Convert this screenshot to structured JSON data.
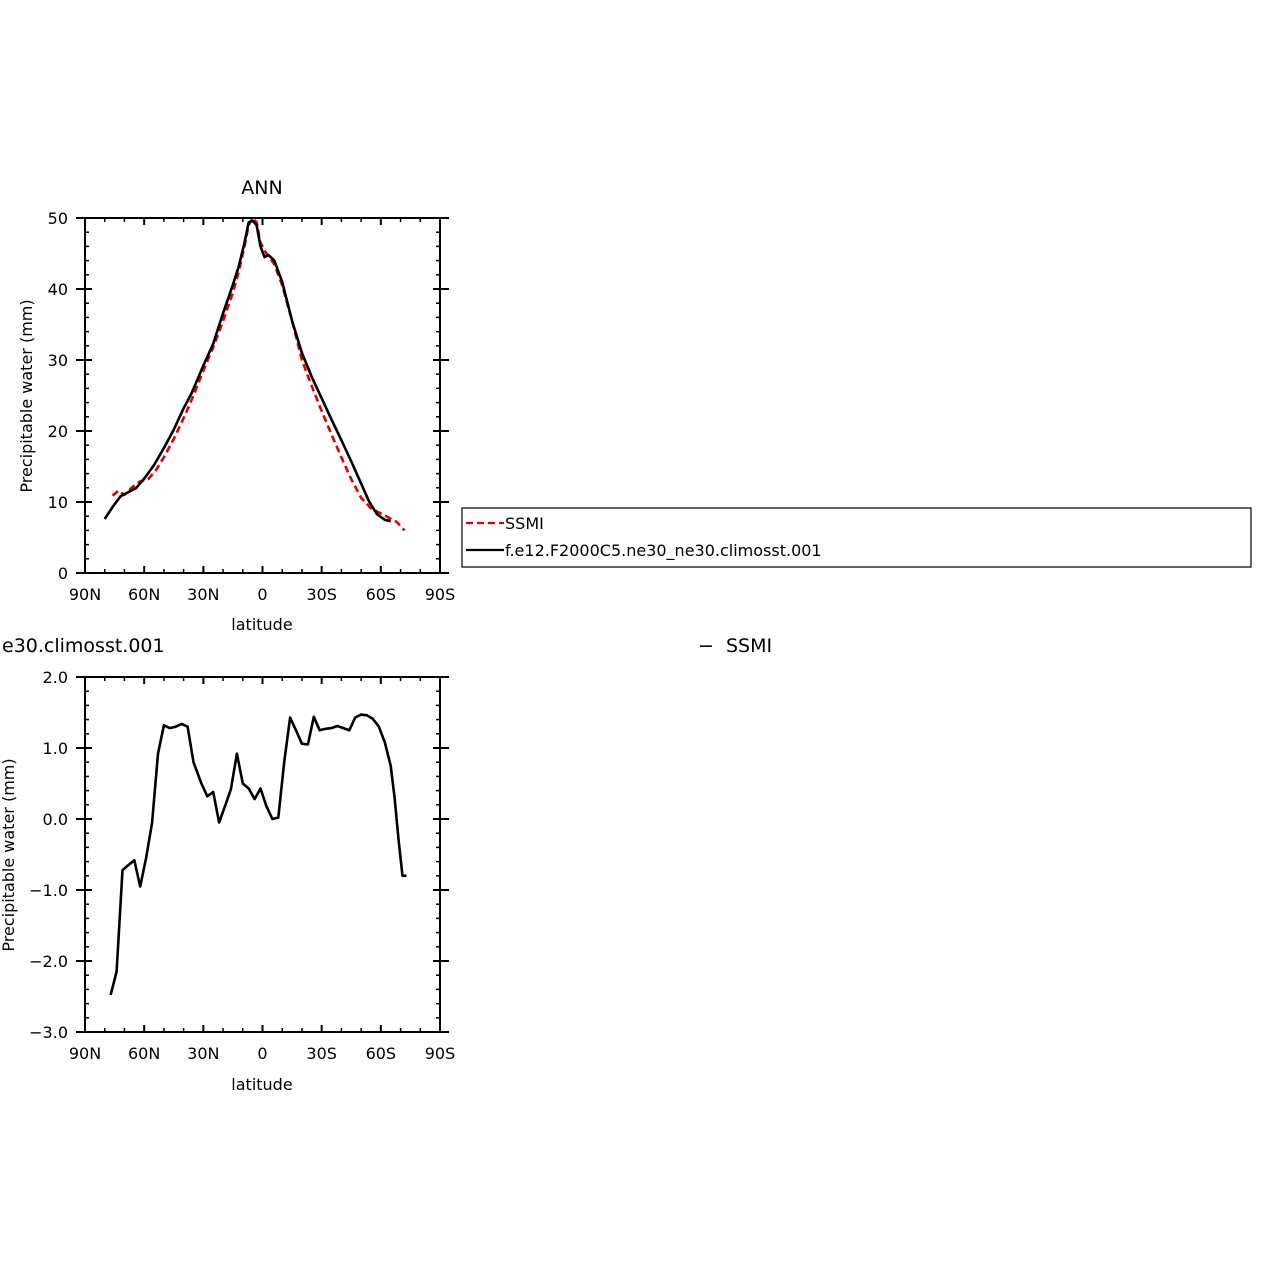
{
  "chart_data": [
    {
      "type": "line",
      "title": "ANN",
      "xlabel": "latitude",
      "ylabel": "Precipitable water  (mm)",
      "x_direction": "north-to-south",
      "xlim": [
        90,
        -90
      ],
      "ylim": [
        0,
        50
      ],
      "x_ticks": [
        90,
        60,
        30,
        0,
        -30,
        -60,
        -90
      ],
      "x_tick_labels": [
        "90N",
        "60N",
        "30N",
        "0",
        "30S",
        "60S",
        "90S"
      ],
      "y_ticks": [
        0,
        10,
        20,
        30,
        40,
        50
      ],
      "y_tick_labels": [
        "0",
        "10",
        "20",
        "30",
        "40",
        "50"
      ],
      "grid": false,
      "legend": {
        "placement": "right",
        "entries": [
          "SSMI",
          "f.e12.F2000C5.ne30_ne30.climosst.001"
        ]
      },
      "series": [
        {
          "name": "SSMI",
          "color": "#e00000",
          "dash": "dashed",
          "points": [
            [
              76,
              10.9
            ],
            [
              73,
              11.6
            ],
            [
              70,
              11.0
            ],
            [
              66,
              12.1
            ],
            [
              62,
              12.9
            ],
            [
              58,
              13.2
            ],
            [
              54,
              14.5
            ],
            [
              50,
              16.3
            ],
            [
              45,
              18.9
            ],
            [
              40,
              21.8
            ],
            [
              35,
              25.0
            ],
            [
              30,
              28.5
            ],
            [
              25,
              31.8
            ],
            [
              20,
              35.5
            ],
            [
              15,
              39.5
            ],
            [
              12,
              42.5
            ],
            [
              9,
              46.2
            ],
            [
              7,
              49.0
            ],
            [
              5,
              50.0
            ],
            [
              3,
              49.4
            ],
            [
              1,
              46.5
            ],
            [
              -2,
              45.0
            ],
            [
              -6,
              43.5
            ],
            [
              -10,
              40.5
            ],
            [
              -15,
              35.5
            ],
            [
              -20,
              30.0
            ],
            [
              -25,
              26.3
            ],
            [
              -30,
              22.8
            ],
            [
              -35,
              19.5
            ],
            [
              -40,
              16.3
            ],
            [
              -45,
              13.2
            ],
            [
              -50,
              10.6
            ],
            [
              -55,
              9.1
            ],
            [
              -60,
              8.4
            ],
            [
              -64,
              7.8
            ],
            [
              -68,
              7.2
            ],
            [
              -72,
              6.0
            ]
          ]
        },
        {
          "name": "f.e12.F2000C5.ne30_ne30.climosst.001",
          "color": "#000000",
          "dash": "solid",
          "points": [
            [
              80,
              7.6
            ],
            [
              76,
              9.3
            ],
            [
              72,
              10.8
            ],
            [
              68,
              11.4
            ],
            [
              64,
              12.0
            ],
            [
              60,
              13.3
            ],
            [
              55,
              15.2
            ],
            [
              50,
              17.6
            ],
            [
              45,
              20.2
            ],
            [
              40,
              23.2
            ],
            [
              36,
              25.3
            ],
            [
              30,
              29.2
            ],
            [
              25,
              32.3
            ],
            [
              20,
              36.6
            ],
            [
              15,
              40.6
            ],
            [
              12,
              43.2
            ],
            [
              9,
              46.7
            ],
            [
              7,
              49.4
            ],
            [
              5,
              49.6
            ],
            [
              3,
              49.0
            ],
            [
              1,
              46.0
            ],
            [
              -1,
              44.5
            ],
            [
              -3,
              44.8
            ],
            [
              -6,
              44.0
            ],
            [
              -10,
              41.0
            ],
            [
              -15,
              35.5
            ],
            [
              -20,
              31.0
            ],
            [
              -25,
              27.6
            ],
            [
              -30,
              24.6
            ],
            [
              -35,
              21.6
            ],
            [
              -40,
              18.7
            ],
            [
              -45,
              15.7
            ],
            [
              -50,
              12.6
            ],
            [
              -54,
              10.1
            ],
            [
              -58,
              8.3
            ],
            [
              -62,
              7.5
            ],
            [
              -65,
              7.3
            ]
          ]
        }
      ]
    },
    {
      "type": "line",
      "title": "e30.climosst.001",
      "title_right": "SSMI",
      "title_right_dash": "−",
      "xlabel": "latitude",
      "ylabel": "Precipitable water  (mm)",
      "x_direction": "north-to-south",
      "xlim": [
        90,
        -90
      ],
      "ylim": [
        -3.0,
        2.0
      ],
      "x_ticks": [
        90,
        60,
        30,
        0,
        -30,
        -60,
        -90
      ],
      "x_tick_labels": [
        "90N",
        "60N",
        "30N",
        "0",
        "30S",
        "60S",
        "90S"
      ],
      "y_ticks": [
        -3.0,
        -2.0,
        -1.0,
        0.0,
        1.0,
        2.0
      ],
      "y_tick_labels": [
        "−3.0",
        "−2.0",
        "−1.0",
        "0.0",
        "1.0",
        "2.0"
      ],
      "grid": false,
      "series": [
        {
          "color": "#000000",
          "dash": "solid",
          "points": [
            [
              77,
              -2.48
            ],
            [
              74,
              -2.15
            ],
            [
              71,
              -0.72
            ],
            [
              68,
              -0.65
            ],
            [
              65,
              -0.58
            ],
            [
              62,
              -0.95
            ],
            [
              59,
              -0.55
            ],
            [
              56,
              -0.05
            ],
            [
              53,
              0.92
            ],
            [
              50,
              1.32
            ],
            [
              47,
              1.28
            ],
            [
              44,
              1.3
            ],
            [
              41,
              1.34
            ],
            [
              38,
              1.3
            ],
            [
              35,
              0.8
            ],
            [
              31,
              0.5
            ],
            [
              28,
              0.32
            ],
            [
              25,
              0.38
            ],
            [
              22,
              -0.05
            ],
            [
              19,
              0.18
            ],
            [
              16,
              0.42
            ],
            [
              13,
              0.92
            ],
            [
              10,
              0.5
            ],
            [
              7,
              0.43
            ],
            [
              4,
              0.28
            ],
            [
              1,
              0.43
            ],
            [
              -2,
              0.18
            ],
            [
              -5,
              0.0
            ],
            [
              -8,
              0.02
            ],
            [
              -11,
              0.8
            ],
            [
              -14,
              1.43
            ],
            [
              -17,
              1.25
            ],
            [
              -20,
              1.06
            ],
            [
              -23,
              1.05
            ],
            [
              -26,
              1.44
            ],
            [
              -29,
              1.25
            ],
            [
              -32,
              1.27
            ],
            [
              -35,
              1.28
            ],
            [
              -38,
              1.31
            ],
            [
              -41,
              1.28
            ],
            [
              -44,
              1.25
            ],
            [
              -47,
              1.43
            ],
            [
              -50,
              1.47
            ],
            [
              -53,
              1.46
            ],
            [
              -56,
              1.41
            ],
            [
              -59,
              1.3
            ],
            [
              -62,
              1.08
            ],
            [
              -65,
              0.75
            ],
            [
              -67,
              0.3
            ],
            [
              -69,
              -0.3
            ],
            [
              -71,
              -0.8
            ],
            [
              -73,
              -0.8
            ]
          ]
        }
      ]
    }
  ]
}
